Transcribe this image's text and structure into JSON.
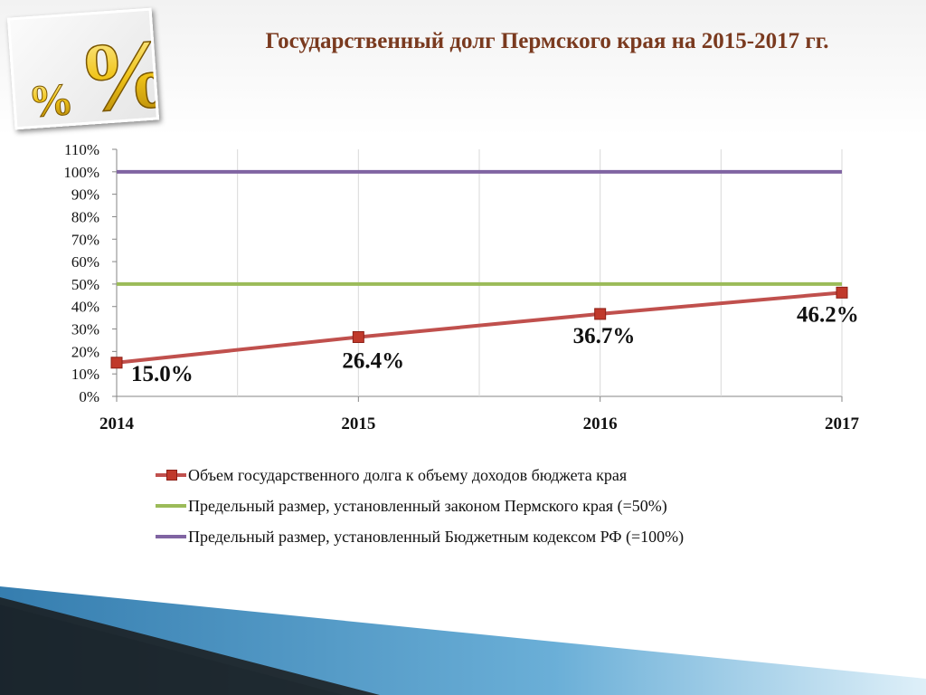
{
  "header": {
    "title": "Государственный долг Пермского края на 2015-2017 гг.",
    "logo_icon": "percent-sign-icon"
  },
  "chart_data": {
    "type": "line",
    "categories": [
      "2014",
      "2015",
      "2016",
      "2017"
    ],
    "ylim": [
      0,
      110
    ],
    "yticks": [
      "0%",
      "10%",
      "20%",
      "30%",
      "40%",
      "50%",
      "60%",
      "70%",
      "80%",
      "90%",
      "100%",
      "110%"
    ],
    "grid": false,
    "legend_position": "bottom",
    "series": [
      {
        "name": "Объем государственного долга к объему доходов бюджета края",
        "values": [
          15.0,
          26.4,
          36.7,
          46.2
        ],
        "labels": [
          "15.0%",
          "26.4%",
          "36.7%",
          "46.2%"
        ],
        "color": "#c0504d",
        "marker": "square"
      },
      {
        "name": "Предельный размер, установленный законом Пермского края (=50%)",
        "values": [
          50,
          50,
          50,
          50
        ],
        "color": "#9bbb59"
      },
      {
        "name": "Предельный размер, установленный Бюджетным кодексом РФ (=100%)",
        "values": [
          100,
          100,
          100,
          100
        ],
        "color": "#8064a2"
      }
    ]
  }
}
